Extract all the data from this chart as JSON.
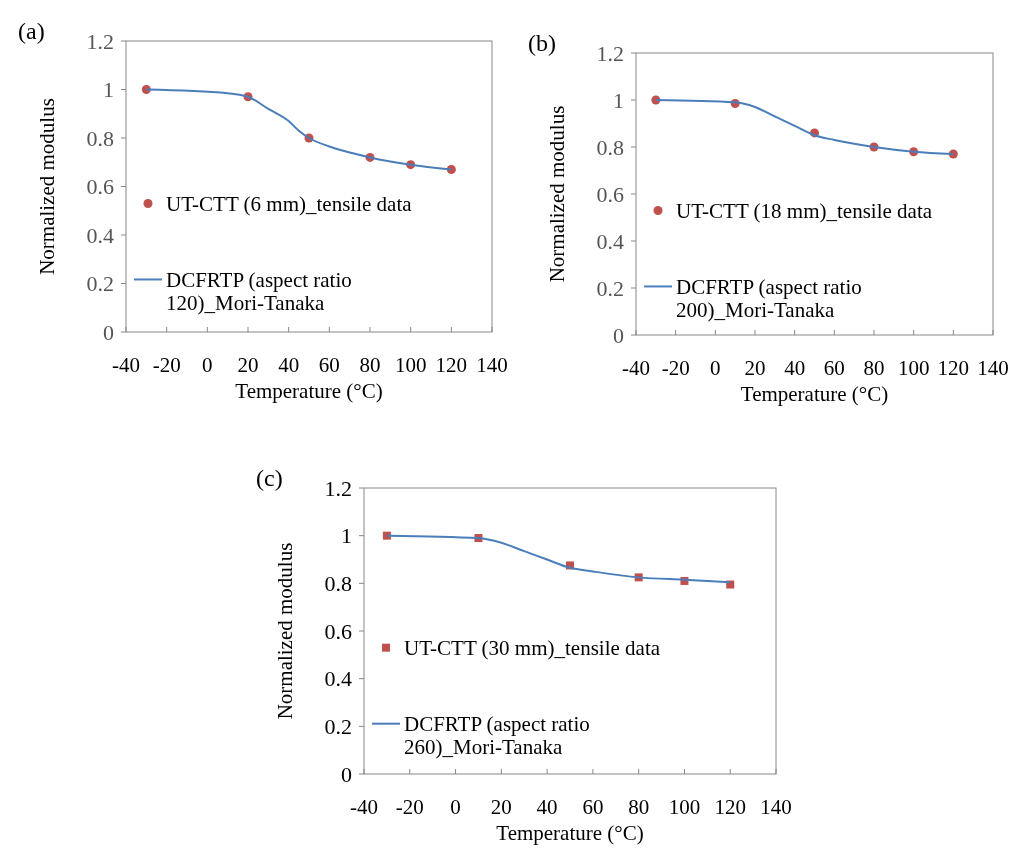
{
  "chart_data": [
    {
      "type": "line",
      "title": "(a)",
      "xlabel": "Temperature (°C)",
      "ylabel": "Normalized modulus",
      "xlim": [
        -40,
        140
      ],
      "xticks": [
        -40,
        -20,
        0,
        20,
        40,
        60,
        80,
        100,
        120,
        140
      ],
      "ylim": [
        0,
        1.2
      ],
      "yticks": [
        0,
        0.2,
        0.4,
        0.6,
        0.8,
        1,
        1.2
      ],
      "grid": false,
      "legend": "left",
      "series": [
        {
          "name": "UT-CTT (6 mm)_tensile data",
          "type": "scatter",
          "marker": "circle",
          "color": "#c0504d",
          "x": [
            -30,
            20,
            50,
            80,
            100,
            120
          ],
          "values": [
            1.0,
            0.97,
            0.8,
            0.72,
            0.69,
            0.67
          ]
        },
        {
          "name": "DCFRTP (aspect ratio 120)_Mori-Tanaka",
          "color": "#4a7ebb",
          "x": [
            -30,
            10,
            20,
            30,
            40,
            45,
            50,
            60,
            70,
            80,
            100,
            120
          ],
          "values": [
            1.0,
            0.985,
            0.97,
            0.92,
            0.87,
            0.83,
            0.8,
            0.765,
            0.74,
            0.72,
            0.69,
            0.67
          ]
        }
      ]
    },
    {
      "type": "line",
      "title": "(b)",
      "xlabel": "Temperature (°C)",
      "ylabel": "Normalized modulus",
      "xlim": [
        -40,
        140
      ],
      "xticks": [
        -40,
        -20,
        0,
        20,
        40,
        60,
        80,
        100,
        120,
        140
      ],
      "ylim": [
        0,
        1.2
      ],
      "yticks": [
        0,
        0.2,
        0.4,
        0.6,
        0.8,
        1,
        1.2
      ],
      "grid": false,
      "legend": "left",
      "series": [
        {
          "name": "UT-CTT (18 mm)_tensile data",
          "type": "scatter",
          "marker": "circle",
          "color": "#c0504d",
          "x": [
            -30,
            10,
            50,
            80,
            100,
            120
          ],
          "values": [
            1.0,
            0.985,
            0.86,
            0.8,
            0.78,
            0.77
          ]
        },
        {
          "name": "DCFRTP (aspect ratio 200)_Mori-Tanaka",
          "color": "#4a7ebb",
          "x": [
            -30,
            10,
            20,
            30,
            40,
            50,
            60,
            80,
            100,
            120
          ],
          "values": [
            1.0,
            0.99,
            0.97,
            0.93,
            0.89,
            0.85,
            0.83,
            0.8,
            0.78,
            0.77
          ]
        }
      ]
    },
    {
      "type": "line",
      "title": "(c)",
      "xlabel": "Temperature (°C)",
      "ylabel": "Normalized modulus",
      "xlim": [
        -40,
        140
      ],
      "xticks": [
        -40,
        -20,
        0,
        20,
        40,
        60,
        80,
        100,
        120,
        140
      ],
      "ylim": [
        0,
        1.2
      ],
      "yticks": [
        0,
        0.2,
        0.4,
        0.6,
        0.8,
        1,
        1.2
      ],
      "grid": false,
      "legend": "left",
      "series": [
        {
          "name": "UT-CTT (30 mm)_tensile data",
          "type": "scatter",
          "marker": "square",
          "color": "#c0504d",
          "x": [
            -30,
            10,
            50,
            80,
            100,
            120
          ],
          "values": [
            1.0,
            0.99,
            0.875,
            0.825,
            0.81,
            0.795
          ]
        },
        {
          "name": "DCFRTP (aspect ratio 260)_Mori-Tanaka",
          "color": "#4a7ebb",
          "x": [
            -30,
            10,
            20,
            30,
            40,
            50,
            60,
            80,
            100,
            120
          ],
          "values": [
            1.0,
            0.99,
            0.97,
            0.935,
            0.9,
            0.865,
            0.85,
            0.825,
            0.815,
            0.805
          ]
        }
      ]
    }
  ]
}
